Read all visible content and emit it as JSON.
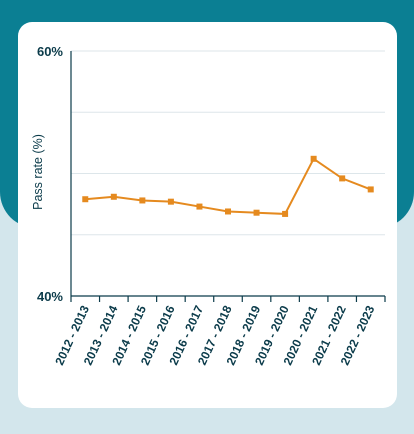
{
  "chart_data": {
    "type": "line",
    "title": "",
    "xlabel": "",
    "ylabel": "Pass rate (%)",
    "ylim": [
      40,
      60
    ],
    "ytick_labels": [
      {
        "value": 60,
        "label": "60%"
      },
      {
        "value": 40,
        "label": "40%"
      }
    ],
    "categories": [
      "2012 - 2013",
      "2013 - 2014",
      "2014 - 2015",
      "2015 - 2016",
      "2016 - 2017",
      "2017 - 2018",
      "2018 - 2019",
      "2019 - 2020",
      "2020 - 2021",
      "2021 - 2022",
      "2022 - 2023"
    ],
    "series": [
      {
        "values": [
          47.9,
          48.1,
          47.8,
          47.7,
          47.3,
          46.9,
          46.8,
          46.7,
          51.2,
          49.6,
          48.7
        ]
      }
    ],
    "grid": true,
    "colors": {
      "line": "#e58a1f",
      "grid": "#dde6ea",
      "axis": "#0b3b4a"
    }
  }
}
